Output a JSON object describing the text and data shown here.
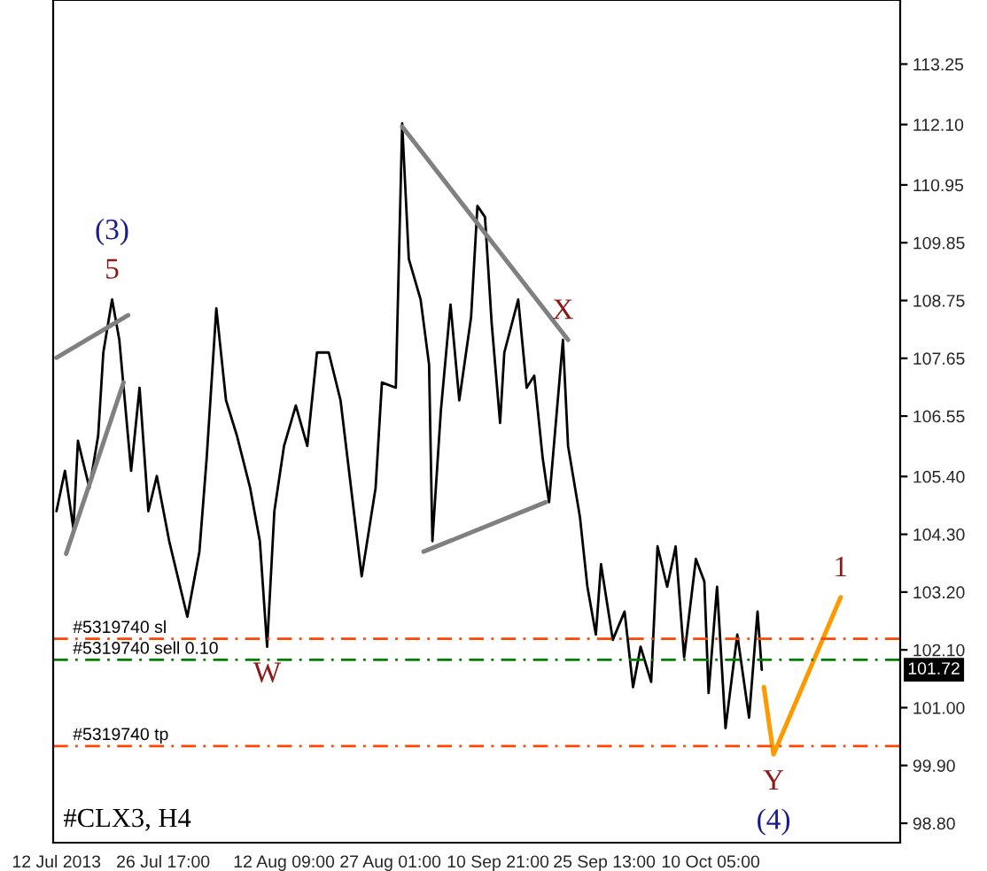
{
  "chart_data": {
    "type": "line",
    "xlim": [
      "2013-07-11T13:00",
      "2013-11-05T08:00"
    ],
    "xticks": [
      {
        "value": "2013-07-12T00:00",
        "label": "12 Jul 2013"
      },
      {
        "value": "2013-07-26T17:00",
        "label": "26 Jul 17:00"
      },
      {
        "value": "2013-08-12T09:00",
        "label": "12 Aug 09:00"
      },
      {
        "value": "2013-08-27T01:00",
        "label": "27 Aug 01:00"
      },
      {
        "value": "2013-09-10T21:00",
        "label": "10 Sep 21:00"
      },
      {
        "value": "2013-09-25T13:00",
        "label": "25 Sep 13:00"
      },
      {
        "value": "2013-10-10T05:00",
        "label": "10 Oct 05:00"
      }
    ],
    "ylim": [
      98.43,
      114.47
    ],
    "yticks": [
      {
        "value": 113.25,
        "label": "113.25"
      },
      {
        "value": 112.1,
        "label": "112.10"
      },
      {
        "value": 110.95,
        "label": "110.95"
      },
      {
        "value": 109.85,
        "label": "109.85"
      },
      {
        "value": 108.75,
        "label": "108.75"
      },
      {
        "value": 107.65,
        "label": "107.65"
      },
      {
        "value": 106.55,
        "label": "106.55"
      },
      {
        "value": 105.4,
        "label": "105.40"
      },
      {
        "value": 104.3,
        "label": "104.30"
      },
      {
        "value": 103.2,
        "label": "103.20"
      },
      {
        "value": 102.1,
        "label": "102.10"
      },
      {
        "value": 101.0,
        "label": "101.00"
      },
      {
        "value": 99.9,
        "label": "99.90"
      },
      {
        "value": 98.8,
        "label": "98.80"
      }
    ],
    "grid": false,
    "legend": false,
    "series": [
      {
        "color": "#000000",
        "x": [
          "2013-07-12T00:00",
          "2013-07-13T04:00",
          "2013-07-14T08:00",
          "2013-07-14T23:00",
          "2013-07-16T13:00",
          "2013-07-17T18:00",
          "2013-07-18T11:00",
          "2013-07-19T16:00",
          "2013-07-20T16:00",
          "2013-07-22T07:00",
          "2013-07-23T11:00",
          "2013-07-24T16:00",
          "2013-07-25T20:00",
          "2013-07-27T13:00",
          "2013-07-30T01:00",
          "2013-07-31T17:00",
          "2013-08-01T17:00",
          "2013-08-03T01:00",
          "2013-08-04T09:00",
          "2013-08-05T21:00",
          "2013-08-07T17:00",
          "2013-08-09T01:00",
          "2013-08-10T01:00",
          "2013-08-11T01:00",
          "2013-08-12T09:00",
          "2013-08-14T00:00",
          "2013-08-15T14:00",
          "2013-08-16T22:00",
          "2013-08-18T13:00",
          "2013-08-20T04:00",
          "2013-08-21T08:00",
          "2013-08-23T02:00",
          "2013-08-25T00:00",
          "2013-08-25T21:00",
          "2013-08-27T19:00",
          "2013-08-28T16:00",
          "2013-08-29T14:00",
          "2013-08-31T05:00",
          "2013-09-01T09:00",
          "2013-09-01T20:00",
          "2013-09-03T00:00",
          "2013-09-04T08:00",
          "2013-09-05T13:00",
          "2013-09-07T04:00",
          "2013-09-08T01:00",
          "2013-09-09T02:00",
          "2013-09-10T00:00",
          "2013-09-11T04:00",
          "2013-09-11T18:00",
          "2013-09-13T16:00",
          "2013-09-14T20:00",
          "2013-09-15T21:00",
          "2013-09-17T01:00",
          "2013-09-17T22:00",
          "2013-09-19T20:00",
          "2013-09-20T13:00",
          "2013-09-22T04:00",
          "2013-09-23T05:00",
          "2013-09-24T09:00",
          "2013-09-25T02:00",
          "2013-09-26T17:00",
          "2013-09-28T08:00",
          "2013-09-29T12:00",
          "2013-09-30T13:00",
          "2013-10-02T00:00",
          "2013-10-02T21:00",
          "2013-10-04T05:00",
          "2013-10-05T09:00",
          "2013-10-06T13:00",
          "2013-10-08T04:00",
          "2013-10-09T08:00",
          "2013-10-09T22:00",
          "2013-10-11T02:00",
          "2013-10-12T06:00",
          "2013-10-13T21:00",
          "2013-10-15T12:00",
          "2013-10-16T16:00",
          "2013-10-17T06:00"
        ],
        "values": [
          104.74,
          105.51,
          104.41,
          106.08,
          105.18,
          106.18,
          107.76,
          108.77,
          108.0,
          105.51,
          107.09,
          104.74,
          105.41,
          104.17,
          102.73,
          103.97,
          105.75,
          108.6,
          106.85,
          106.18,
          105.18,
          104.17,
          102.16,
          104.74,
          105.98,
          106.75,
          105.98,
          107.76,
          107.76,
          106.85,
          105.51,
          103.5,
          105.18,
          107.19,
          107.09,
          112.12,
          109.54,
          108.77,
          107.53,
          104.17,
          106.65,
          108.67,
          106.85,
          108.43,
          110.55,
          110.34,
          108.33,
          106.42,
          107.76,
          108.77,
          107.09,
          107.32,
          105.75,
          104.91,
          108.0,
          105.98,
          104.64,
          103.3,
          102.39,
          103.73,
          102.29,
          102.83,
          101.39,
          102.16,
          101.49,
          104.07,
          103.3,
          104.07,
          101.96,
          103.83,
          103.4,
          101.28,
          103.3,
          100.61,
          102.39,
          100.81,
          102.83,
          101.72
        ]
      },
      {
        "color": "#808080",
        "x": [
          "2013-07-12T00:00",
          "2013-07-21T21:00"
        ],
        "values": [
          107.66,
          108.47
        ]
      },
      {
        "color": "#808080",
        "x": [
          "2013-07-13T08:00",
          "2013-07-21T06:00"
        ],
        "values": [
          103.93,
          107.19
        ]
      },
      {
        "color": "#808080",
        "x": [
          "2013-08-28T16:00",
          "2013-09-20T13:00"
        ],
        "values": [
          112.06,
          108.0
        ]
      },
      {
        "color": "#808080",
        "x": [
          "2013-08-31T15:00",
          "2013-09-17T11:00"
        ],
        "values": [
          103.97,
          104.91
        ]
      },
      {
        "color": "#ff9900",
        "x": [
          "2013-10-17T13:00",
          "2013-10-18T21:00",
          "2013-10-28T03:00"
        ],
        "values": [
          101.39,
          100.11,
          103.1
        ]
      }
    ],
    "ref_lines": [
      {
        "axis": "y",
        "value": 102.31,
        "label": "#5319740 sl",
        "color": "#ff4500",
        "line_style": "dashed"
      },
      {
        "axis": "y",
        "value": 101.91,
        "label": "#5319740 sell 0.10",
        "color": "#008000",
        "line_style": "dashed"
      },
      {
        "axis": "y",
        "value": 100.27,
        "label": "#5319740 tp",
        "color": "#ff4500",
        "line_style": "dashed"
      }
    ],
    "annotations": [
      {
        "text": "5",
        "x": "2013-07-19T16:00",
        "y": 108.77
      },
      {
        "text": "(3)",
        "x": "2013-07-19T16:00",
        "y": 108.77
      },
      {
        "text": "W",
        "x": "2013-08-10T01:00",
        "y": 102.16
      },
      {
        "text": "X",
        "x": "2013-09-19T20:00",
        "y": 108.0
      },
      {
        "text": "Y",
        "x": "2013-10-18T21:00",
        "y": 100.11
      },
      {
        "text": "(4)",
        "x": "2013-10-18T21:00",
        "y": 100.11
      },
      {
        "text": "1",
        "x": "2013-10-28T03:00",
        "y": 103.1
      },
      "#CLX3, H4",
      {
        "text": "101.72",
        "y": 101.72
      }
    ]
  }
}
